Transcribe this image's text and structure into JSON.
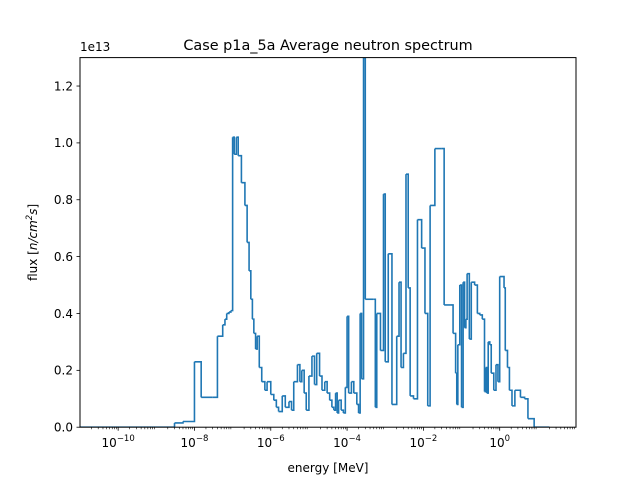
{
  "chart_data": {
    "type": "line",
    "drawstyle": "steps",
    "title": "Case p1a_5a Average neutron spectrum",
    "xlabel": "energy [MeV]",
    "ylabel_prefix": "flux [",
    "ylabel_math": "n/cm",
    "ylabel_sup": "2",
    "ylabel_math_tail": "s",
    "ylabel_suffix": "]",
    "y_offset_text": "1e13",
    "xscale": "log",
    "xlim": [
      1e-11,
      100.0
    ],
    "ylim": [
      0,
      13
    ],
    "y_unit_multiplier": 10000000000000.0,
    "grid": false,
    "x_ticks": [
      {
        "value": 1e-10,
        "base": "10",
        "exp": "−10"
      },
      {
        "value": 1e-08,
        "base": "10",
        "exp": "−8"
      },
      {
        "value": 1e-06,
        "base": "10",
        "exp": "−6"
      },
      {
        "value": 0.0001,
        "base": "10",
        "exp": "−4"
      },
      {
        "value": 0.01,
        "base": "10",
        "exp": "−2"
      },
      {
        "value": 1,
        "base": "10",
        "exp": "0"
      }
    ],
    "y_ticks": [
      {
        "value": 0,
        "label": "0.0"
      },
      {
        "value": 2,
        "label": "0.2"
      },
      {
        "value": 4,
        "label": "0.4"
      },
      {
        "value": 6,
        "label": "0.6"
      },
      {
        "value": 8,
        "label": "0.8"
      },
      {
        "value": 10,
        "label": "1.0"
      },
      {
        "value": 12,
        "label": "1.2"
      }
    ],
    "series": [
      {
        "color": "#1f77b4",
        "points": [
          [
            1e-11,
            0.0
          ],
          [
            1.5e-09,
            0.0
          ],
          [
            3e-09,
            0.15
          ],
          [
            5e-09,
            0.2
          ],
          [
            1e-08,
            2.3
          ],
          [
            1.5e-08,
            1.05
          ],
          [
            3e-08,
            1.05
          ],
          [
            4e-08,
            3.2
          ],
          [
            5.5e-08,
            3.6
          ],
          [
            6.3e-08,
            3.8
          ],
          [
            7e-08,
            4.0
          ],
          [
            8e-08,
            4.05
          ],
          [
            9e-08,
            4.1
          ],
          [
            1e-07,
            10.2
          ],
          [
            1.1e-07,
            9.6
          ],
          [
            1.25e-07,
            10.2
          ],
          [
            1.4e-07,
            9.55
          ],
          [
            1.7e-07,
            8.6
          ],
          [
            2.1e-07,
            7.8
          ],
          [
            2.4e-07,
            6.5
          ],
          [
            2.7e-07,
            5.5
          ],
          [
            3e-07,
            4.5
          ],
          [
            3.3e-07,
            3.8
          ],
          [
            3.6e-07,
            3.3
          ],
          [
            4e-07,
            2.75
          ],
          [
            4.4e-07,
            3.2
          ],
          [
            5e-07,
            2.1
          ],
          [
            5.8e-07,
            1.6
          ],
          [
            7e-07,
            1.3
          ],
          [
            8e-07,
            1.6
          ],
          [
            1e-06,
            1.15
          ],
          [
            1.2e-06,
            0.95
          ],
          [
            1.4e-06,
            0.7
          ],
          [
            1.6e-06,
            0.55
          ],
          [
            2e-06,
            1.1
          ],
          [
            2.4e-06,
            0.7
          ],
          [
            3e-06,
            0.9
          ],
          [
            3.5e-06,
            0.6
          ],
          [
            4e-06,
            1.6
          ],
          [
            5e-06,
            2.2
          ],
          [
            5.8e-06,
            1.6
          ],
          [
            6.5e-06,
            2.0
          ],
          [
            7.5e-06,
            1.2
          ],
          [
            8.5e-06,
            0.6
          ],
          [
            1e-05,
            1.8
          ],
          [
            1.2e-05,
            2.5
          ],
          [
            1.4e-05,
            1.5
          ],
          [
            1.6e-05,
            2.6
          ],
          [
            1.9e-05,
            1.8
          ],
          [
            2.2e-05,
            1.3
          ],
          [
            2.6e-05,
            1.6
          ],
          [
            3e-05,
            1.2
          ],
          [
            3.5e-05,
            0.95
          ],
          [
            4e-05,
            0.7
          ],
          [
            4.5e-05,
            0.6
          ],
          [
            5e-05,
            1.2
          ],
          [
            5.5e-05,
            0.5
          ],
          [
            6e-05,
            0.95
          ],
          [
            7e-05,
            0.6
          ],
          [
            8e-05,
            0.5
          ],
          [
            9e-05,
            1.4
          ],
          [
            0.0001,
            3.9
          ],
          [
            0.00011,
            1.2
          ],
          [
            0.00013,
            1.6
          ],
          [
            0.00015,
            1.2
          ],
          [
            0.00018,
            0.8
          ],
          [
            0.0002,
            0.5
          ],
          [
            0.00022,
            4.0
          ],
          [
            0.00024,
            1.7
          ],
          [
            0.00027,
            13.0
          ],
          [
            0.0003,
            4.5
          ],
          [
            0.0005,
            4.5
          ],
          [
            0.00055,
            0.7
          ],
          [
            0.0006,
            4.0
          ],
          [
            0.00075,
            2.7
          ],
          [
            0.0009,
            8.2
          ],
          [
            0.001,
            2.3
          ],
          [
            0.0012,
            6.1
          ],
          [
            0.0015,
            0.8
          ],
          [
            0.002,
            3.2
          ],
          [
            0.0023,
            5.1
          ],
          [
            0.0026,
            2.1
          ],
          [
            0.003,
            2.6
          ],
          [
            0.0035,
            8.9
          ],
          [
            0.004,
            4.9
          ],
          [
            0.0045,
            1.1
          ],
          [
            0.0055,
            1.0
          ],
          [
            0.007,
            7.3
          ],
          [
            0.009,
            6.3
          ],
          [
            0.011,
            4.0
          ],
          [
            0.013,
            0.75
          ],
          [
            0.015,
            7.8
          ],
          [
            0.02,
            9.8
          ],
          [
            0.03,
            9.8
          ],
          [
            0.035,
            4.3
          ],
          [
            0.05,
            4.3
          ],
          [
            0.06,
            3.3
          ],
          [
            0.07,
            1.9
          ],
          [
            0.075,
            0.8
          ],
          [
            0.08,
            2.9
          ],
          [
            0.09,
            5.0
          ],
          [
            0.1,
            0.7
          ],
          [
            0.11,
            5.1
          ],
          [
            0.12,
            3.5
          ],
          [
            0.13,
            3.8
          ],
          [
            0.14,
            5.4
          ],
          [
            0.16,
            3.1
          ],
          [
            0.18,
            5.1
          ],
          [
            0.22,
            5.0
          ],
          [
            0.26,
            4.0
          ],
          [
            0.3,
            3.95
          ],
          [
            0.35,
            3.8
          ],
          [
            0.4,
            1.25
          ],
          [
            0.43,
            2.1
          ],
          [
            0.46,
            1.2
          ],
          [
            0.5,
            3.0
          ],
          [
            0.55,
            2.9
          ],
          [
            0.6,
            1.9
          ],
          [
            0.7,
            1.3
          ],
          [
            0.8,
            2.2
          ],
          [
            0.9,
            1.6
          ],
          [
            1.0,
            5.3
          ],
          [
            1.3,
            4.9
          ],
          [
            1.4,
            2.7
          ],
          [
            1.6,
            2.1
          ],
          [
            1.8,
            1.3
          ],
          [
            2.1,
            0.75
          ],
          [
            2.5,
            1.3
          ],
          [
            3.5,
            1.05
          ],
          [
            4.5,
            1.0
          ],
          [
            5.5,
            0.3
          ],
          [
            8.0,
            0.0
          ],
          [
            20.0,
            0.0
          ]
        ]
      }
    ]
  }
}
